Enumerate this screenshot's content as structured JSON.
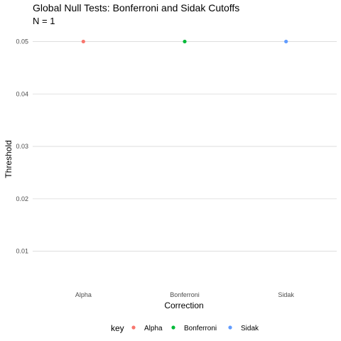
{
  "chart_data": {
    "type": "scatter",
    "title": "Global Null Tests: Bonferroni and Sidak Cutoffs",
    "subtitle": "N = 1",
    "xlabel": "Correction",
    "ylabel": "Threshold",
    "categories": [
      "Alpha",
      "Bonferroni",
      "Sidak"
    ],
    "values": [
      0.05,
      0.05,
      0.05
    ],
    "colors": [
      "#F8766D",
      "#00BA38",
      "#619CFF"
    ],
    "ylim": [
      0.004,
      0.0525
    ],
    "yticks": [
      0.01,
      0.02,
      0.03,
      0.04,
      0.05
    ],
    "ytick_labels": [
      "0.01",
      "0.02",
      "0.03",
      "0.04",
      "0.05"
    ],
    "grid": true,
    "legend": {
      "title": "key",
      "position": "bottom",
      "entries": [
        "Alpha",
        "Bonferroni",
        "Sidak"
      ]
    }
  }
}
